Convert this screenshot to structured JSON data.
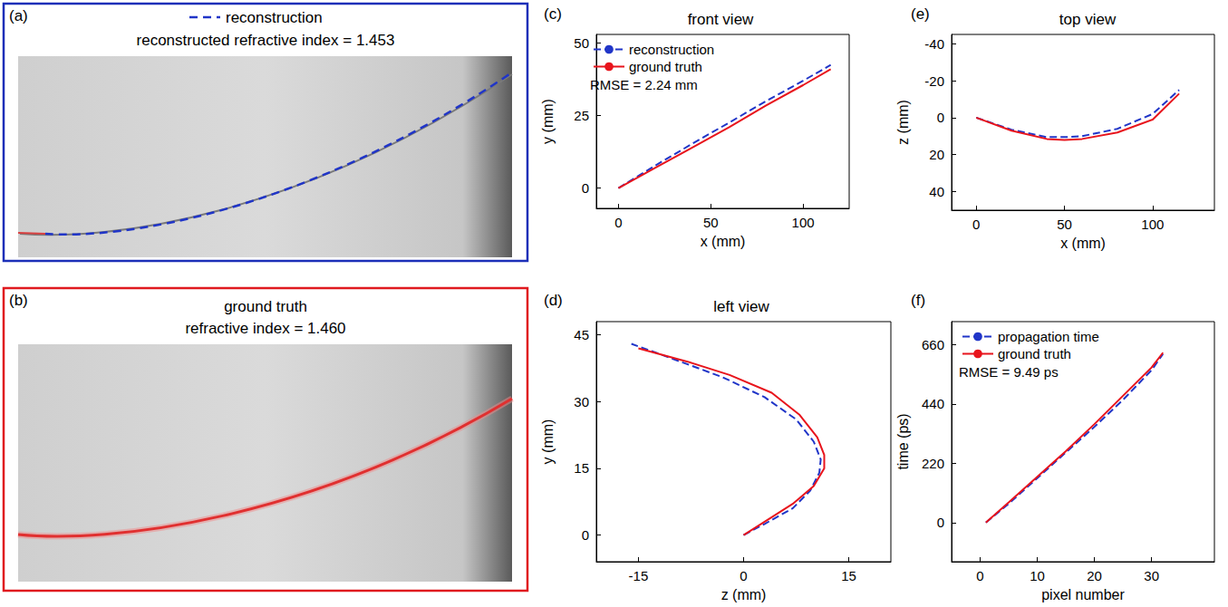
{
  "chart_data": [
    {
      "panel": "(a)",
      "type": "photo",
      "color": "#1c2fb8",
      "legend": "top",
      "title": "reconstructed refractive index = 1.453",
      "series": [
        {
          "name": "reconstruction",
          "color": "#2035c8",
          "line_style": "dashed"
        }
      ]
    },
    {
      "panel": "(b)",
      "type": "photo",
      "color": "#e0191f",
      "title": "ground truth",
      "subtitle": "refractive index = 1.460"
    },
    {
      "panel": "(c)",
      "type": "line",
      "title": "front view",
      "xlabel": "x (mm)",
      "ylabel": "y (mm)",
      "xlim": [
        -12,
        125
      ],
      "xticks": [
        0,
        50,
        100
      ],
      "ylim": [
        -7,
        53
      ],
      "yticks": [
        0,
        25,
        50
      ],
      "legend": "upper left",
      "annotation": "RMSE = 2.24 mm",
      "series": [
        {
          "name": "reconstruction",
          "color": "#2035c8",
          "line_style": "dashed",
          "x": [
            0,
            20,
            40,
            60,
            80,
            100,
            115
          ],
          "values": [
            0,
            7.8,
            15.3,
            22.6,
            30,
            37,
            42.5
          ]
        },
        {
          "name": "ground truth",
          "color": "#e8141c",
          "line_style": "solid",
          "x": [
            0,
            20,
            40,
            60,
            80,
            100,
            115
          ],
          "values": [
            0,
            7,
            14,
            21,
            28.5,
            35.5,
            41
          ]
        }
      ]
    },
    {
      "panel": "(d)",
      "type": "line",
      "title": "left view",
      "xlabel": "z (mm)",
      "ylabel": "y (mm)",
      "xlim": [
        -21,
        21
      ],
      "xticks": [
        -15,
        0,
        15
      ],
      "ylim": [
        -6,
        48
      ],
      "yticks": [
        0,
        15,
        30,
        45
      ],
      "series": [
        {
          "color": "#2035c8",
          "line_style": "dashed",
          "x": [
            0,
            3,
            7,
            9.5,
            10.8,
            11,
            10,
            7.5,
            3,
            -3,
            -9,
            -16
          ],
          "values": [
            0,
            2.5,
            6,
            10,
            14,
            17,
            21,
            26,
            31,
            35.5,
            39,
            43
          ]
        },
        {
          "color": "#e8141c",
          "line_style": "solid",
          "x": [
            0,
            3,
            7,
            10,
            11.5,
            11.5,
            10.5,
            8,
            4,
            -2,
            -8,
            -15
          ],
          "values": [
            0,
            3,
            7,
            11,
            15,
            18,
            22,
            27,
            32,
            36,
            39,
            42
          ]
        }
      ]
    },
    {
      "panel": "(e)",
      "type": "line",
      "title": "top view",
      "xlabel": "x (mm)",
      "ylabel": "z (mm)",
      "xlim": [
        -14,
        135
      ],
      "xticks": [
        0,
        50,
        100
      ],
      "ylim": [
        50,
        -45
      ],
      "yticks": [
        -40,
        -20,
        0,
        20,
        40
      ],
      "series": [
        {
          "color": "#2035c8",
          "line_style": "dashed",
          "x": [
            0,
            20,
            40,
            50,
            60,
            80,
            100,
            115
          ],
          "values": [
            0,
            6.5,
            10.5,
            10.5,
            10,
            6,
            -2,
            -15
          ]
        },
        {
          "color": "#e8141c",
          "line_style": "solid",
          "x": [
            0,
            20,
            40,
            50,
            60,
            80,
            100,
            115
          ],
          "values": [
            0,
            7,
            11.5,
            12,
            11.5,
            8,
            1,
            -13
          ]
        }
      ]
    },
    {
      "panel": "(f)",
      "type": "line",
      "xlabel": "pixel number",
      "ylabel": "time (ps)",
      "xlim": [
        -5,
        41
      ],
      "xticks": [
        0,
        10,
        20,
        30
      ],
      "ylim": [
        -145,
        745
      ],
      "yticks": [
        0,
        220,
        440,
        660
      ],
      "legend": "upper left",
      "annotation": "RMSE = 9.49 ps",
      "series": [
        {
          "name": "propagation time",
          "color": "#2035c8",
          "line_style": "dashed",
          "x": [
            1,
            5,
            10,
            15,
            20,
            25,
            30,
            32
          ],
          "values": [
            0,
            70,
            165,
            260,
            355,
            455,
            565,
            625
          ]
        },
        {
          "name": "ground truth",
          "color": "#e8141c",
          "line_style": "solid",
          "x": [
            1,
            5,
            10,
            15,
            20,
            25,
            30,
            32
          ],
          "values": [
            0,
            75,
            170,
            265,
            365,
            470,
            575,
            630
          ]
        }
      ]
    }
  ]
}
